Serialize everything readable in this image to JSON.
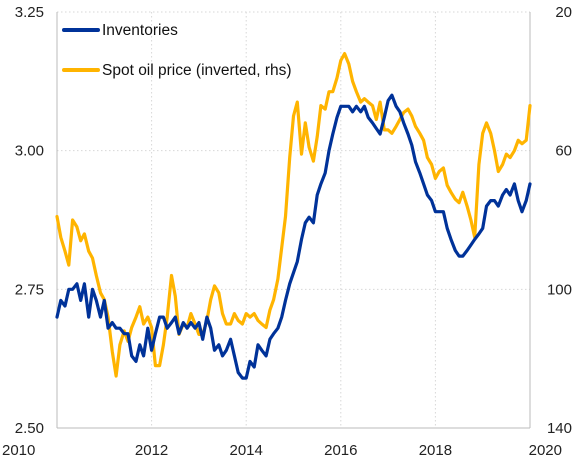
{
  "chart_data": {
    "type": "line",
    "x_axis": {
      "range": [
        2010,
        2020
      ],
      "ticks": [
        2010,
        2012,
        2014,
        2016,
        2018,
        2020
      ],
      "tick_labels": [
        "2010",
        "2012",
        "2014",
        "2016",
        "2018",
        "2020"
      ]
    },
    "y_left": {
      "range": [
        2.5,
        3.25
      ],
      "ticks": [
        2.5,
        2.75,
        3.0,
        3.25
      ],
      "tick_labels": [
        "2.50",
        "2.75",
        "3.00",
        "3.25"
      ]
    },
    "y_right": {
      "range": [
        140,
        20
      ],
      "inverted": true,
      "ticks": [
        140,
        100,
        60,
        20
      ],
      "tick_labels": [
        "140",
        "100",
        "60",
        "20"
      ]
    },
    "grid": {
      "horizontal": true,
      "vertical": true
    },
    "legend": {
      "placement": "top-left"
    },
    "series": [
      {
        "name": "Inventories",
        "axis": "left",
        "color": "#003299",
        "points": [
          [
            2010.0,
            2.7
          ],
          [
            2010.08,
            2.73
          ],
          [
            2010.17,
            2.72
          ],
          [
            2010.25,
            2.75
          ],
          [
            2010.33,
            2.75
          ],
          [
            2010.42,
            2.76
          ],
          [
            2010.5,
            2.73
          ],
          [
            2010.58,
            2.76
          ],
          [
            2010.67,
            2.7
          ],
          [
            2010.75,
            2.75
          ],
          [
            2010.83,
            2.73
          ],
          [
            2010.92,
            2.7
          ],
          [
            2011.0,
            2.73
          ],
          [
            2011.08,
            2.68
          ],
          [
            2011.17,
            2.69
          ],
          [
            2011.25,
            2.68
          ],
          [
            2011.33,
            2.68
          ],
          [
            2011.42,
            2.67
          ],
          [
            2011.5,
            2.67
          ],
          [
            2011.58,
            2.63
          ],
          [
            2011.67,
            2.62
          ],
          [
            2011.75,
            2.65
          ],
          [
            2011.83,
            2.63
          ],
          [
            2011.92,
            2.68
          ],
          [
            2012.0,
            2.64
          ],
          [
            2012.08,
            2.67
          ],
          [
            2012.17,
            2.7
          ],
          [
            2012.25,
            2.7
          ],
          [
            2012.33,
            2.68
          ],
          [
            2012.42,
            2.69
          ],
          [
            2012.5,
            2.7
          ],
          [
            2012.58,
            2.67
          ],
          [
            2012.67,
            2.69
          ],
          [
            2012.75,
            2.68
          ],
          [
            2012.83,
            2.69
          ],
          [
            2012.92,
            2.68
          ],
          [
            2013.0,
            2.69
          ],
          [
            2013.08,
            2.66
          ],
          [
            2013.17,
            2.7
          ],
          [
            2013.25,
            2.68
          ],
          [
            2013.33,
            2.64
          ],
          [
            2013.42,
            2.65
          ],
          [
            2013.5,
            2.63
          ],
          [
            2013.58,
            2.64
          ],
          [
            2013.67,
            2.66
          ],
          [
            2013.75,
            2.63
          ],
          [
            2013.83,
            2.6
          ],
          [
            2013.92,
            2.59
          ],
          [
            2014.0,
            2.59
          ],
          [
            2014.08,
            2.62
          ],
          [
            2014.17,
            2.61
          ],
          [
            2014.25,
            2.65
          ],
          [
            2014.33,
            2.64
          ],
          [
            2014.42,
            2.63
          ],
          [
            2014.5,
            2.66
          ],
          [
            2014.58,
            2.67
          ],
          [
            2014.67,
            2.68
          ],
          [
            2014.75,
            2.7
          ],
          [
            2014.83,
            2.73
          ],
          [
            2014.92,
            2.76
          ],
          [
            2015.0,
            2.78
          ],
          [
            2015.08,
            2.8
          ],
          [
            2015.17,
            2.84
          ],
          [
            2015.25,
            2.87
          ],
          [
            2015.33,
            2.88
          ],
          [
            2015.42,
            2.87
          ],
          [
            2015.5,
            2.92
          ],
          [
            2015.58,
            2.94
          ],
          [
            2015.67,
            2.96
          ],
          [
            2015.75,
            3.0
          ],
          [
            2015.83,
            3.03
          ],
          [
            2015.92,
            3.06
          ],
          [
            2016.0,
            3.08
          ],
          [
            2016.08,
            3.08
          ],
          [
            2016.17,
            3.08
          ],
          [
            2016.25,
            3.07
          ],
          [
            2016.33,
            3.08
          ],
          [
            2016.42,
            3.07
          ],
          [
            2016.5,
            3.08
          ],
          [
            2016.58,
            3.06
          ],
          [
            2016.67,
            3.05
          ],
          [
            2016.75,
            3.04
          ],
          [
            2016.83,
            3.03
          ],
          [
            2016.92,
            3.06
          ],
          [
            2017.0,
            3.09
          ],
          [
            2017.08,
            3.1
          ],
          [
            2017.17,
            3.08
          ],
          [
            2017.25,
            3.07
          ],
          [
            2017.33,
            3.05
          ],
          [
            2017.42,
            3.03
          ],
          [
            2017.5,
            3.01
          ],
          [
            2017.58,
            2.98
          ],
          [
            2017.67,
            2.96
          ],
          [
            2017.75,
            2.94
          ],
          [
            2017.83,
            2.92
          ],
          [
            2017.92,
            2.91
          ],
          [
            2018.0,
            2.89
          ],
          [
            2018.08,
            2.89
          ],
          [
            2018.17,
            2.89
          ],
          [
            2018.25,
            2.86
          ],
          [
            2018.33,
            2.84
          ],
          [
            2018.42,
            2.82
          ],
          [
            2018.5,
            2.81
          ],
          [
            2018.58,
            2.81
          ],
          [
            2018.67,
            2.82
          ],
          [
            2018.75,
            2.83
          ],
          [
            2018.83,
            2.84
          ],
          [
            2018.92,
            2.85
          ],
          [
            2019.0,
            2.86
          ],
          [
            2019.08,
            2.9
          ],
          [
            2019.17,
            2.91
          ],
          [
            2019.25,
            2.91
          ],
          [
            2019.33,
            2.9
          ],
          [
            2019.42,
            2.92
          ],
          [
            2019.5,
            2.93
          ],
          [
            2019.58,
            2.92
          ],
          [
            2019.67,
            2.94
          ],
          [
            2019.75,
            2.91
          ],
          [
            2019.83,
            2.89
          ],
          [
            2019.92,
            2.91
          ],
          [
            2020.0,
            2.94
          ]
        ]
      },
      {
        "name": "Spot oil price (inverted, rhs)",
        "axis": "right",
        "color": "#FFB400",
        "points": [
          [
            2010.0,
            79
          ],
          [
            2010.08,
            85
          ],
          [
            2010.17,
            89
          ],
          [
            2010.25,
            93
          ],
          [
            2010.33,
            80
          ],
          [
            2010.42,
            82
          ],
          [
            2010.5,
            86
          ],
          [
            2010.58,
            84
          ],
          [
            2010.67,
            89
          ],
          [
            2010.75,
            91
          ],
          [
            2010.83,
            96
          ],
          [
            2010.92,
            101
          ],
          [
            2011.0,
            103
          ],
          [
            2011.08,
            108
          ],
          [
            2011.17,
            118
          ],
          [
            2011.25,
            125
          ],
          [
            2011.33,
            116
          ],
          [
            2011.42,
            112
          ],
          [
            2011.5,
            115
          ],
          [
            2011.58,
            111
          ],
          [
            2011.67,
            108
          ],
          [
            2011.75,
            105
          ],
          [
            2011.83,
            110
          ],
          [
            2011.92,
            108
          ],
          [
            2012.0,
            111
          ],
          [
            2012.08,
            122
          ],
          [
            2012.17,
            122
          ],
          [
            2012.25,
            116
          ],
          [
            2012.33,
            108
          ],
          [
            2012.42,
            96
          ],
          [
            2012.5,
            102
          ],
          [
            2012.58,
            113
          ],
          [
            2012.67,
            110
          ],
          [
            2012.75,
            111
          ],
          [
            2012.83,
            107
          ],
          [
            2012.92,
            110
          ],
          [
            2013.0,
            113
          ],
          [
            2013.08,
            113
          ],
          [
            2013.17,
            109
          ],
          [
            2013.25,
            103
          ],
          [
            2013.33,
            99
          ],
          [
            2013.42,
            101
          ],
          [
            2013.5,
            107
          ],
          [
            2013.58,
            110
          ],
          [
            2013.67,
            110
          ],
          [
            2013.75,
            107
          ],
          [
            2013.83,
            109
          ],
          [
            2013.92,
            110
          ],
          [
            2014.0,
            107
          ],
          [
            2014.08,
            108
          ],
          [
            2014.17,
            107
          ],
          [
            2014.25,
            109
          ],
          [
            2014.33,
            110
          ],
          [
            2014.42,
            111
          ],
          [
            2014.5,
            106
          ],
          [
            2014.58,
            103
          ],
          [
            2014.67,
            97
          ],
          [
            2014.75,
            88
          ],
          [
            2014.83,
            79
          ],
          [
            2014.92,
            62
          ],
          [
            2015.0,
            50
          ],
          [
            2015.08,
            46
          ],
          [
            2015.17,
            61
          ],
          [
            2015.25,
            52
          ],
          [
            2015.33,
            59
          ],
          [
            2015.42,
            63
          ],
          [
            2015.5,
            56
          ],
          [
            2015.58,
            47
          ],
          [
            2015.67,
            48
          ],
          [
            2015.75,
            43
          ],
          [
            2015.83,
            43
          ],
          [
            2015.92,
            39
          ],
          [
            2016.0,
            34
          ],
          [
            2016.08,
            32
          ],
          [
            2016.17,
            35
          ],
          [
            2016.25,
            40
          ],
          [
            2016.33,
            43
          ],
          [
            2016.42,
            46
          ],
          [
            2016.5,
            45
          ],
          [
            2016.58,
            46
          ],
          [
            2016.67,
            47
          ],
          [
            2016.75,
            51
          ],
          [
            2016.83,
            46
          ],
          [
            2016.92,
            54
          ],
          [
            2017.0,
            54
          ],
          [
            2017.08,
            55
          ],
          [
            2017.17,
            53
          ],
          [
            2017.25,
            51
          ],
          [
            2017.33,
            49
          ],
          [
            2017.42,
            48
          ],
          [
            2017.5,
            50
          ],
          [
            2017.58,
            53
          ],
          [
            2017.67,
            55
          ],
          [
            2017.75,
            57
          ],
          [
            2017.83,
            62
          ],
          [
            2017.92,
            64
          ],
          [
            2018.0,
            68
          ],
          [
            2018.08,
            66
          ],
          [
            2018.17,
            65
          ],
          [
            2018.25,
            70
          ],
          [
            2018.33,
            72
          ],
          [
            2018.42,
            74
          ],
          [
            2018.5,
            75
          ],
          [
            2018.58,
            72
          ],
          [
            2018.67,
            76
          ],
          [
            2018.75,
            80
          ],
          [
            2018.83,
            85
          ],
          [
            2018.92,
            64
          ],
          [
            2019.0,
            55
          ],
          [
            2019.08,
            52
          ],
          [
            2019.17,
            55
          ],
          [
            2019.25,
            60
          ],
          [
            2019.33,
            66
          ],
          [
            2019.42,
            64
          ],
          [
            2019.5,
            61
          ],
          [
            2019.58,
            62
          ],
          [
            2019.67,
            60
          ],
          [
            2019.75,
            57
          ],
          [
            2019.83,
            58
          ],
          [
            2019.92,
            57
          ],
          [
            2020.0,
            47
          ]
        ]
      }
    ]
  }
}
